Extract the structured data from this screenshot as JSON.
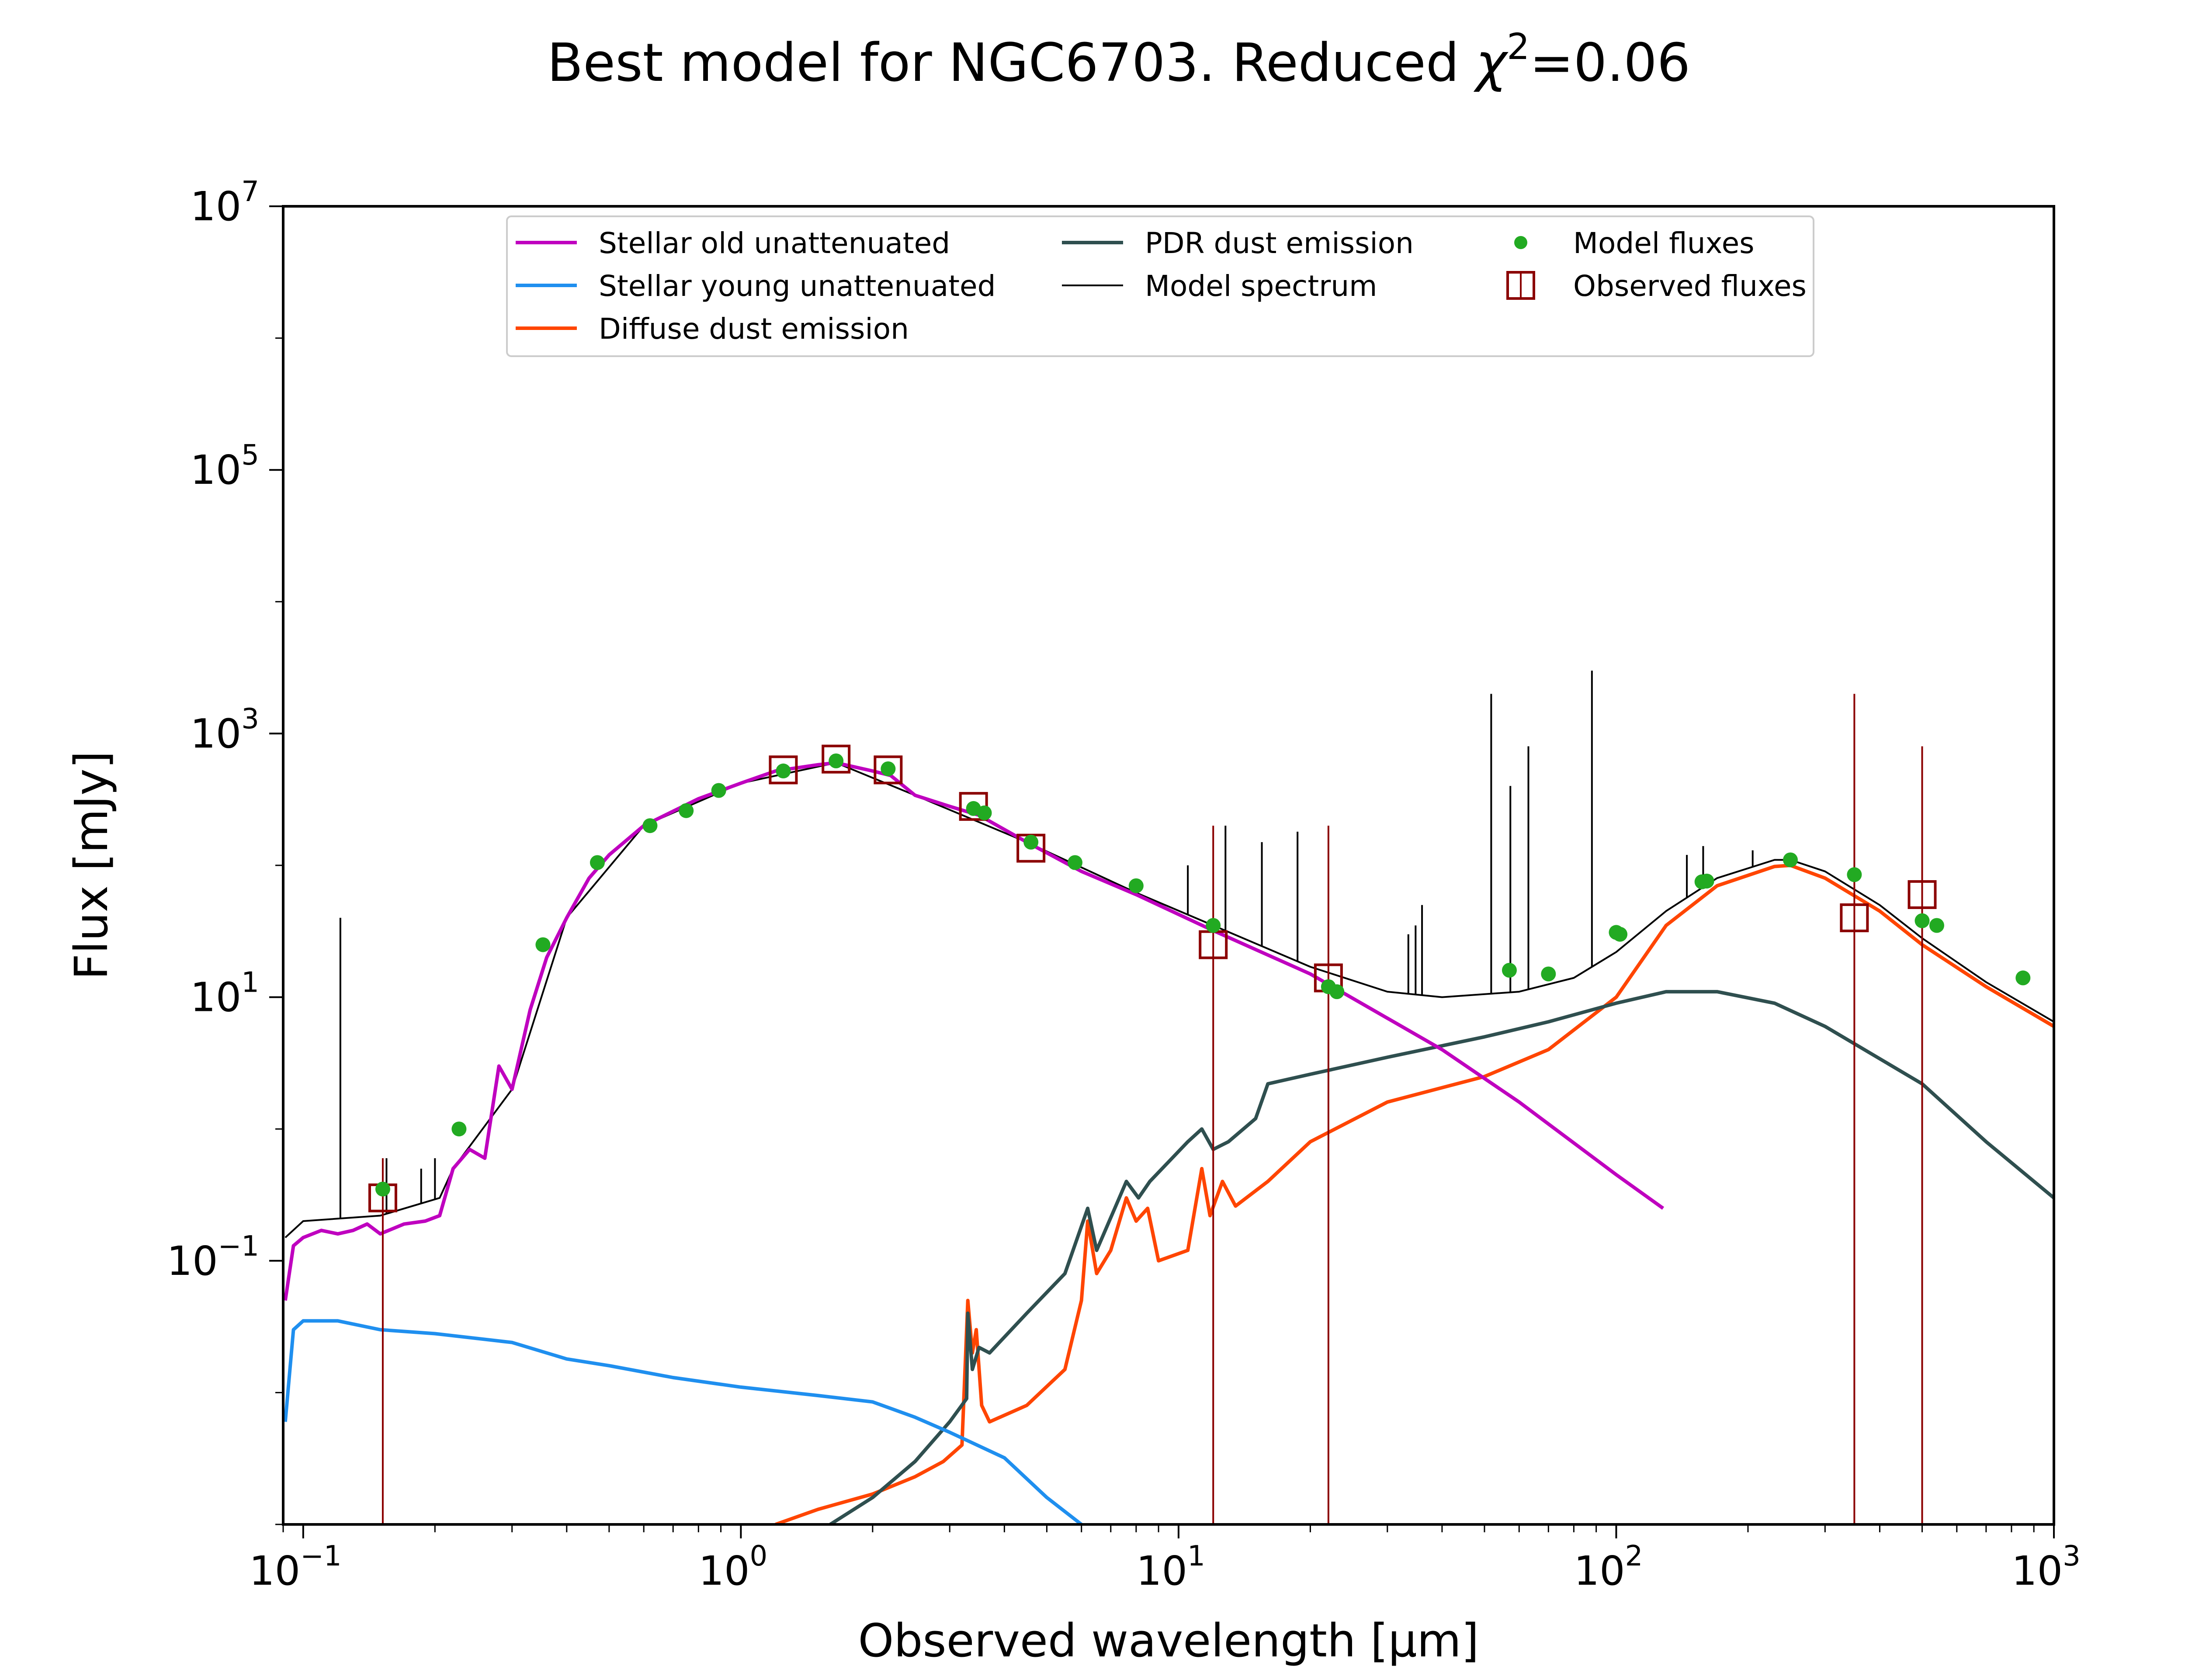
{
  "chart_data": {
    "type": "line",
    "title": "Best model for NGC6703. Reduced χ²=0.06",
    "title_parts": {
      "prefix": "Best model for NGC6703. Reduced ",
      "symbol": "χ",
      "exponent": "2",
      "suffix": "=0.06"
    },
    "xlabel": "Observed wavelength [μm]",
    "ylabel": "Flux [mJy]",
    "xscale": "log",
    "yscale": "log",
    "xlim": [
      0.09,
      1000
    ],
    "ylim": [
      0.001,
      10000000
    ],
    "xticks": [
      {
        "value": 0.1,
        "base": "10",
        "exp": "−1"
      },
      {
        "value": 1,
        "base": "10",
        "exp": "0"
      },
      {
        "value": 10,
        "base": "10",
        "exp": "1"
      },
      {
        "value": 100,
        "base": "10",
        "exp": "2"
      },
      {
        "value": 1000,
        "base": "10",
        "exp": "3"
      }
    ],
    "yticks": [
      {
        "value": 0.1,
        "base": "10",
        "exp": "−1"
      },
      {
        "value": 10,
        "base": "10",
        "exp": "1"
      },
      {
        "value": 1000,
        "base": "10",
        "exp": "3"
      },
      {
        "value": 100000,
        "base": "10",
        "exp": "5"
      },
      {
        "value": 10000000,
        "base": "10",
        "exp": "7"
      }
    ],
    "grid": false,
    "legend_position": "top-center",
    "series": [
      {
        "name": "Stellar old unattenuated",
        "kind": "line",
        "color": "#bf00bf",
        "points": [
          [
            0.091,
            0.05
          ],
          [
            0.095,
            0.13
          ],
          [
            0.1,
            0.15
          ],
          [
            0.11,
            0.17
          ],
          [
            0.12,
            0.16
          ],
          [
            0.13,
            0.17
          ],
          [
            0.14,
            0.19
          ],
          [
            0.15,
            0.16
          ],
          [
            0.17,
            0.19
          ],
          [
            0.19,
            0.2
          ],
          [
            0.205,
            0.22
          ],
          [
            0.22,
            0.5
          ],
          [
            0.24,
            0.7
          ],
          [
            0.26,
            0.6
          ],
          [
            0.28,
            3
          ],
          [
            0.3,
            2
          ],
          [
            0.33,
            8
          ],
          [
            0.36,
            20
          ],
          [
            0.4,
            40
          ],
          [
            0.45,
            80
          ],
          [
            0.5,
            120
          ],
          [
            0.6,
            200
          ],
          [
            0.8,
            320
          ],
          [
            1.0,
            420
          ],
          [
            1.2,
            520
          ],
          [
            1.5,
            580
          ],
          [
            1.65,
            600
          ],
          [
            2.0,
            520
          ],
          [
            2.2,
            480
          ],
          [
            2.5,
            340
          ],
          [
            3.0,
            280
          ],
          [
            3.5,
            240
          ],
          [
            4.5,
            150
          ],
          [
            6,
            90
          ],
          [
            8,
            60
          ],
          [
            12,
            32
          ],
          [
            20,
            15
          ],
          [
            40,
            4
          ],
          [
            60,
            1.6
          ],
          [
            100,
            0.45
          ],
          [
            128,
            0.25
          ]
        ]
      },
      {
        "name": "Stellar young unattenuated",
        "kind": "line",
        "color": "#1f8fef",
        "points": [
          [
            0.091,
            0.006
          ],
          [
            0.095,
            0.03
          ],
          [
            0.1,
            0.035
          ],
          [
            0.12,
            0.035
          ],
          [
            0.15,
            0.03
          ],
          [
            0.2,
            0.028
          ],
          [
            0.3,
            0.024
          ],
          [
            0.4,
            0.018
          ],
          [
            0.5,
            0.016
          ],
          [
            0.7,
            0.013
          ],
          [
            1.0,
            0.011
          ],
          [
            1.5,
            0.0095
          ],
          [
            2.0,
            0.0085
          ],
          [
            2.5,
            0.0065
          ],
          [
            3.0,
            0.005
          ],
          [
            4.0,
            0.0032
          ],
          [
            5.0,
            0.0016
          ],
          [
            6.0,
            0.001
          ]
        ]
      },
      {
        "name": "Diffuse dust emission",
        "kind": "line",
        "color": "#ff4500",
        "points": [
          [
            1.2,
            0.001
          ],
          [
            1.5,
            0.0013
          ],
          [
            2.0,
            0.0017
          ],
          [
            2.5,
            0.0023
          ],
          [
            2.9,
            0.003
          ],
          [
            3.2,
            0.004
          ],
          [
            3.3,
            0.05
          ],
          [
            3.38,
            0.02
          ],
          [
            3.45,
            0.03
          ],
          [
            3.55,
            0.008
          ],
          [
            3.7,
            0.006
          ],
          [
            4.5,
            0.008
          ],
          [
            5.5,
            0.015
          ],
          [
            6.0,
            0.05
          ],
          [
            6.2,
            0.2
          ],
          [
            6.5,
            0.08
          ],
          [
            7.0,
            0.12
          ],
          [
            7.6,
            0.3
          ],
          [
            8.0,
            0.2
          ],
          [
            8.5,
            0.25
          ],
          [
            9.0,
            0.1
          ],
          [
            10.5,
            0.12
          ],
          [
            11.3,
            0.5
          ],
          [
            11.8,
            0.22
          ],
          [
            12.6,
            0.4
          ],
          [
            13.5,
            0.26
          ],
          [
            16,
            0.4
          ],
          [
            20,
            0.8
          ],
          [
            30,
            1.6
          ],
          [
            50,
            2.5
          ],
          [
            70,
            4
          ],
          [
            100,
            10
          ],
          [
            130,
            35
          ],
          [
            170,
            70
          ],
          [
            230,
            98
          ],
          [
            250,
            100
          ],
          [
            300,
            80
          ],
          [
            400,
            45
          ],
          [
            500,
            25
          ],
          [
            700,
            12
          ],
          [
            1000,
            6
          ]
        ]
      },
      {
        "name": "PDR dust emission",
        "kind": "line",
        "color": "#2f4f4f",
        "points": [
          [
            1.6,
            0.001
          ],
          [
            2.0,
            0.0016
          ],
          [
            2.5,
            0.003
          ],
          [
            3.0,
            0.006
          ],
          [
            3.28,
            0.009
          ],
          [
            3.3,
            0.04
          ],
          [
            3.38,
            0.015
          ],
          [
            3.5,
            0.022
          ],
          [
            3.7,
            0.02
          ],
          [
            4.5,
            0.04
          ],
          [
            5.5,
            0.08
          ],
          [
            6.2,
            0.25
          ],
          [
            6.5,
            0.12
          ],
          [
            7.6,
            0.4
          ],
          [
            8.1,
            0.3
          ],
          [
            8.6,
            0.4
          ],
          [
            10.5,
            0.8
          ],
          [
            11.3,
            1.0
          ],
          [
            12.0,
            0.7
          ],
          [
            13.0,
            0.8
          ],
          [
            15,
            1.2
          ],
          [
            16,
            2.2
          ],
          [
            20,
            2.6
          ],
          [
            30,
            3.5
          ],
          [
            50,
            5
          ],
          [
            70,
            6.5
          ],
          [
            100,
            9
          ],
          [
            130,
            11
          ],
          [
            170,
            11
          ],
          [
            230,
            9
          ],
          [
            300,
            6
          ],
          [
            500,
            2.2
          ],
          [
            700,
            0.8
          ],
          [
            1000,
            0.3
          ]
        ]
      },
      {
        "name": "Model spectrum",
        "kind": "line",
        "color": "#000000",
        "points": [
          [
            0.091,
            0.15
          ],
          [
            0.1,
            0.2
          ],
          [
            0.15,
            0.22
          ],
          [
            0.205,
            0.3
          ],
          [
            0.22,
            0.5
          ],
          [
            0.3,
            2
          ],
          [
            0.4,
            40
          ],
          [
            0.6,
            200
          ],
          [
            1.0,
            420
          ],
          [
            1.65,
            600
          ],
          [
            2.5,
            340
          ],
          [
            4.5,
            150
          ],
          [
            8,
            62
          ],
          [
            12,
            35
          ],
          [
            20,
            17
          ],
          [
            30,
            11
          ],
          [
            40,
            10
          ],
          [
            60,
            11
          ],
          [
            80,
            14
          ],
          [
            100,
            22
          ],
          [
            130,
            45
          ],
          [
            170,
            80
          ],
          [
            230,
            110
          ],
          [
            250,
            110
          ],
          [
            300,
            90
          ],
          [
            400,
            50
          ],
          [
            500,
            28
          ],
          [
            700,
            13
          ],
          [
            1000,
            6.5
          ]
        ],
        "emission_lines": [
          [
            0.1216,
            40
          ],
          [
            0.155,
            0.6
          ],
          [
            0.186,
            0.5
          ],
          [
            0.2,
            0.6
          ],
          [
            10.5,
            100
          ],
          [
            12.8,
            200
          ],
          [
            15.5,
            150
          ],
          [
            18.7,
            180
          ],
          [
            33.5,
            30
          ],
          [
            34.8,
            35
          ],
          [
            36,
            50
          ],
          [
            51.8,
            2000
          ],
          [
            57.3,
            400
          ],
          [
            63,
            800
          ],
          [
            88,
            3000
          ],
          [
            145,
            120
          ],
          [
            158,
            140
          ],
          [
            205,
            130
          ]
        ]
      },
      {
        "name": "Model fluxes",
        "kind": "scatter",
        "marker": "circle",
        "color": "#22aa22",
        "points": [
          [
            0.152,
            0.35
          ],
          [
            0.227,
            1.0
          ],
          [
            0.353,
            25
          ],
          [
            0.47,
            105
          ],
          [
            0.62,
            200
          ],
          [
            0.75,
            260
          ],
          [
            0.89,
            370
          ],
          [
            1.25,
            520
          ],
          [
            1.65,
            620
          ],
          [
            2.17,
            540
          ],
          [
            3.4,
            270
          ],
          [
            3.6,
            250
          ],
          [
            4.6,
            150
          ],
          [
            5.8,
            105
          ],
          [
            8.0,
            70
          ],
          [
            12,
            35
          ],
          [
            22,
            12
          ],
          [
            23,
            11
          ],
          [
            57,
            16
          ],
          [
            70,
            15
          ],
          [
            100,
            31
          ],
          [
            102,
            30
          ],
          [
            157,
            75
          ],
          [
            161,
            76
          ],
          [
            250,
            110
          ],
          [
            350,
            85
          ],
          [
            500,
            38
          ],
          [
            540,
            35
          ],
          [
            850,
            14
          ]
        ]
      },
      {
        "name": "Observed fluxes",
        "kind": "errorbar",
        "marker": "square-open",
        "color": "#8b0000",
        "points": [
          [
            0.152,
            0.3
          ],
          [
            1.25,
            530
          ],
          [
            1.65,
            640
          ],
          [
            2.17,
            530
          ],
          [
            3.4,
            280
          ],
          [
            4.6,
            135
          ],
          [
            12,
            25
          ],
          [
            22,
            14
          ],
          [
            350,
            40
          ],
          [
            500,
            60
          ]
        ],
        "error_bars": [
          [
            0.152,
            0.001,
            0.6
          ],
          [
            12,
            0.001,
            200
          ],
          [
            22,
            0.001,
            200
          ],
          [
            350,
            0.001,
            2000
          ],
          [
            500,
            0.001,
            800
          ]
        ]
      }
    ]
  }
}
